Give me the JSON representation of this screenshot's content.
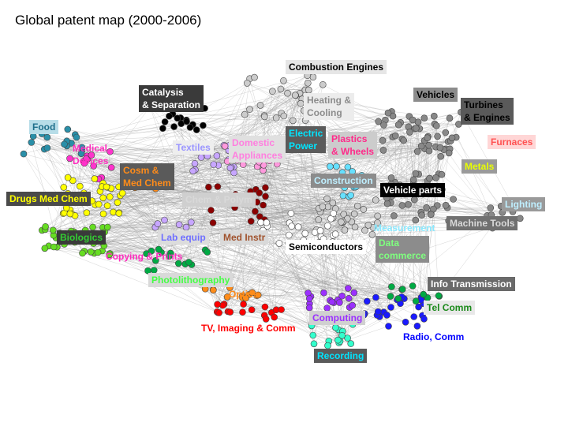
{
  "title": "Global patent map (2000-2006)",
  "labels": [
    {
      "text": "Combustion Engines",
      "color": "#000000",
      "bg": "#e6e6e6"
    },
    {
      "text": "Catalysis\n& Separation",
      "color": "#ffffff",
      "bg": "#3a3a3a"
    },
    {
      "text": "Heating &\nCooling",
      "color": "#8c8c8c",
      "bg": "#ececec"
    },
    {
      "text": "Vehicles",
      "color": "#000000",
      "bg": "#8c8c8c"
    },
    {
      "text": "Turbines\n& Engines",
      "color": "#000000",
      "bg": "#5a5a5a"
    },
    {
      "text": "Food",
      "color": "#1f6f8b",
      "bg": "#b7dde8"
    },
    {
      "text": "Medical\nDevices",
      "color": "#ff2dbf",
      "bg": "transparent"
    },
    {
      "text": "Textiles",
      "color": "#9b96ff",
      "bg": "#eeeeee"
    },
    {
      "text": "Domestic\nAppliances",
      "color": "#ff7fdf",
      "bg": "#e0e0e0"
    },
    {
      "text": "Electric\nPower",
      "color": "#00e5ff",
      "bg": "#5b5b5b"
    },
    {
      "text": "Plastics\n& Wheels",
      "color": "#ff2a8a",
      "bg": "#cccccc"
    },
    {
      "text": "Furnaces",
      "color": "#ff5252",
      "bg": "#ffd6d6"
    },
    {
      "text": "Metals",
      "color": "#e8ff00",
      "bg": "#9a9a9a"
    },
    {
      "text": "Cosm &\nMed Chem",
      "color": "#ff8c1a",
      "bg": "#5a5a5a"
    },
    {
      "text": "Construction",
      "color": "#bfefff",
      "bg": "#8c8c8c"
    },
    {
      "text": "Vehicle parts",
      "color": "#ffffff",
      "bg": "#000000"
    },
    {
      "text": "Drugs Med Chem",
      "color": "#ffff00",
      "bg": "#4a4a4a"
    },
    {
      "text": "Chem & Polym",
      "color": "#d9d9d9",
      "bg": "#cfcfcf"
    },
    {
      "text": "Lighting",
      "color": "#bfefff",
      "bg": "#9a9a9a"
    },
    {
      "text": "Machine Tools",
      "color": "#d9d9d9",
      "bg": "#707070"
    },
    {
      "text": "Measurement",
      "color": "#8be9ff",
      "bg": "transparent"
    },
    {
      "text": "Biologics",
      "color": "#33cc33",
      "bg": "#3a3a3a"
    },
    {
      "text": "Lab equip",
      "color": "#6f6fff",
      "bg": "#dcdcdc"
    },
    {
      "text": "Med Instr",
      "color": "#a0522d",
      "bg": "#d9d9d9"
    },
    {
      "text": "Semiconductors",
      "color": "#000000",
      "bg": "#ffffff"
    },
    {
      "text": "Data\ncommerce",
      "color": "#7fff7f",
      "bg": "#8c8c8c"
    },
    {
      "text": "Copying  & Prints",
      "color": "#ff2dbf",
      "bg": "transparent"
    },
    {
      "text": "Photolithography",
      "color": "#44ff44",
      "bg": "#d9d9d9"
    },
    {
      "text": "Info  Transmission",
      "color": "#ffffff",
      "bg": "#6a6a6a"
    },
    {
      "text": "Optics",
      "color": "#ff8c1a",
      "bg": "transparent"
    },
    {
      "text": "Tel Comm",
      "color": "#1a8a1a",
      "bg": "#e8e8e8"
    },
    {
      "text": "TV, Imaging & Comm",
      "color": "#ff0000",
      "bg": "transparent"
    },
    {
      "text": "Computing",
      "color": "#9b30ff",
      "bg": "#d0d0d0"
    },
    {
      "text": "Radio, Comm",
      "color": "#0000ff",
      "bg": "transparent"
    },
    {
      "text": "Recording",
      "color": "#00e5ff",
      "bg": "#5a5a5a"
    }
  ],
  "cluster_colors": {
    "teal": "#2a8fa8",
    "magenta": "#ff33cc",
    "yellow": "#ffff00",
    "lime": "#66dd22",
    "orange": "#ff8c1a",
    "black": "#000000",
    "gray": "#888888",
    "lightgray": "#cccccc",
    "lavender": "#c7a6ff",
    "pink": "#ff99dd",
    "maroon": "#8b0000",
    "cyan": "#66e0ff",
    "red": "#ff0000",
    "purple": "#9b30ff",
    "blue": "#1a1aff",
    "green": "#00aa44",
    "aqua": "#33ffcc",
    "white": "#ffffff"
  }
}
